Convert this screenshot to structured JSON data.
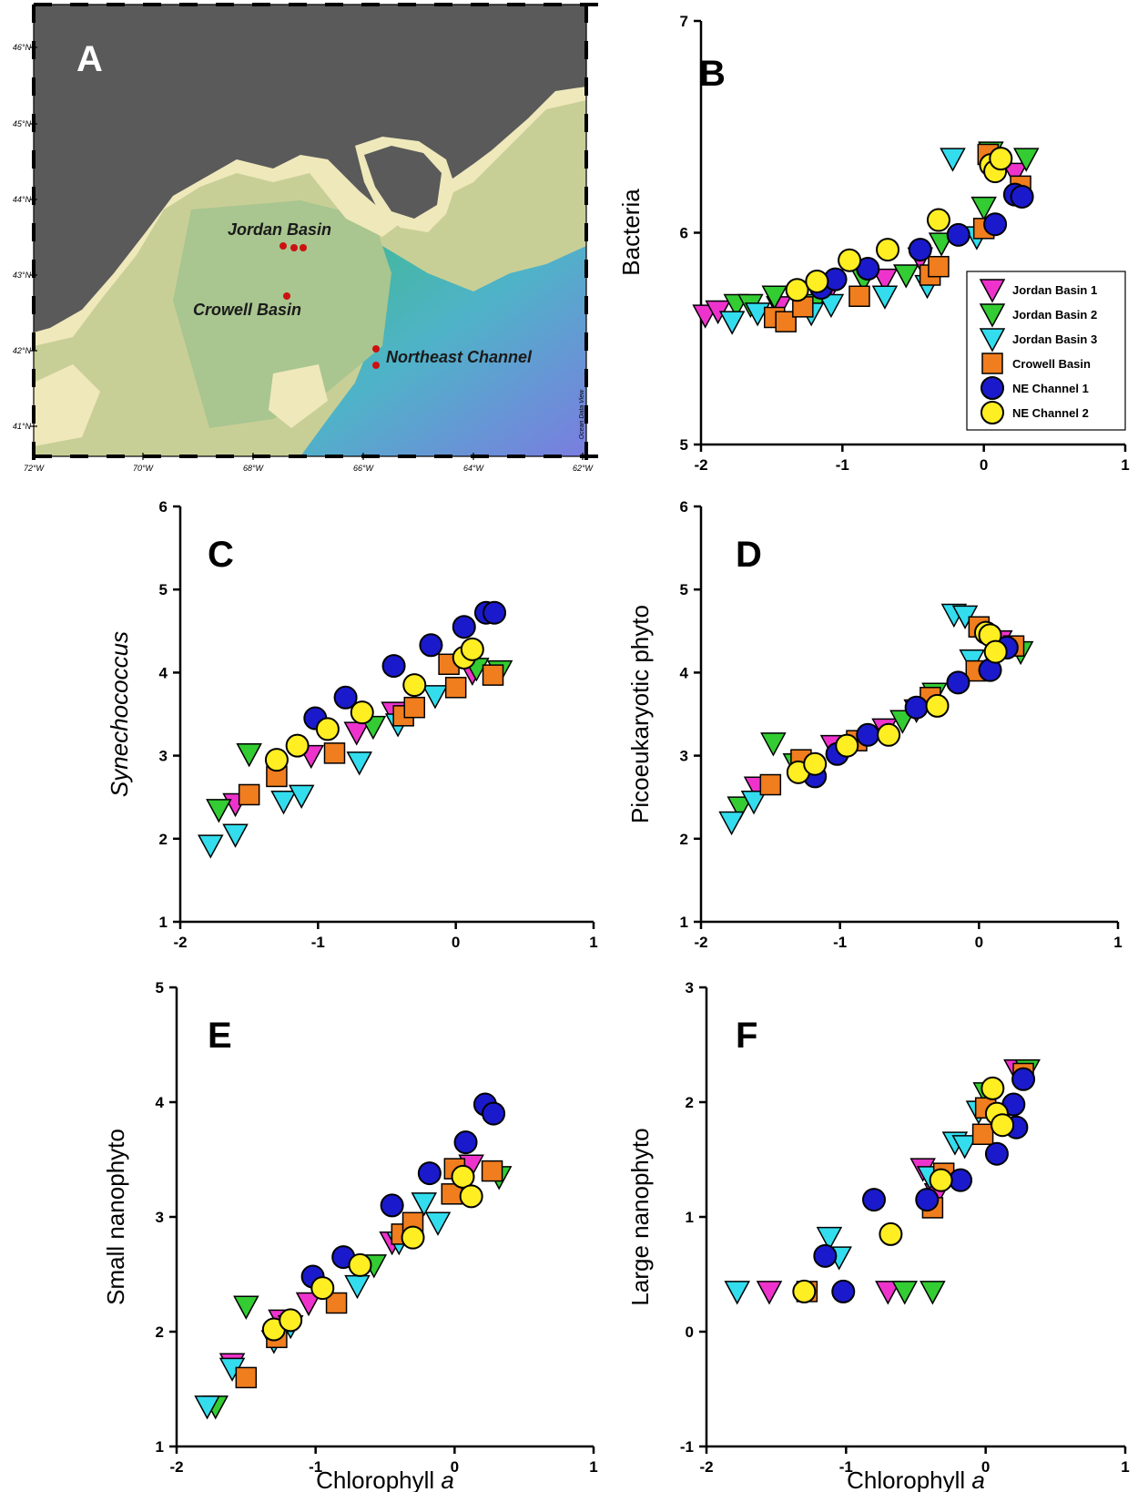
{
  "colors": {
    "Jordan Basin 1": "#ee33cc",
    "Jordan Basin 2": "#33cc33",
    "Jordan Basin 3": "#33ddee",
    "Crowell Basin": "#f07d1e",
    "NE Channel 1": "#1a1acc",
    "NE Channel 2": "#ffee22"
  },
  "shapes": {
    "Jordan Basin 1": "triangle-down",
    "Jordan Basin 2": "triangle-down",
    "Jordan Basin 3": "triangle-down",
    "Crowell Basin": "square",
    "NE Channel 1": "circle",
    "NE Channel 2": "circle"
  },
  "map": {
    "letter": "A",
    "longitude_ticks": [
      "72°W",
      "70°W",
      "68°W",
      "66°W",
      "64°W",
      "62°W"
    ],
    "latitude_ticks": [
      "46°N",
      "45°N",
      "44°N",
      "43°N",
      "42°N",
      "41°N"
    ],
    "site_labels": [
      "Jordan Basin",
      "Crowell Basin",
      "Northeast Channel"
    ],
    "credit": "Ocean Data View"
  },
  "legend": [
    "Jordan Basin 1",
    "Jordan Basin 2",
    "Jordan Basin 3",
    "Crowell Basin",
    "NE Channel 1",
    "NE Channel 2"
  ],
  "chart_data": [
    {
      "panel": "B",
      "type": "scatter",
      "ylabel": "Bacteria",
      "xlabel": "",
      "xlim": [
        -2,
        1
      ],
      "ylim": [
        5,
        7
      ],
      "xticks": [
        "-2",
        "-1",
        "0",
        "1"
      ],
      "yticks": [
        "5",
        "6",
        "7"
      ],
      "series": [
        {
          "name": "Jordan Basin 1",
          "x": [
            -1.97,
            -1.88,
            -1.45,
            -1.1,
            -0.7,
            -0.45,
            0.22
          ],
          "y": [
            5.61,
            5.63,
            5.65,
            5.72,
            5.78,
            5.88,
            6.28
          ]
        },
        {
          "name": "Jordan Basin 2",
          "x": [
            -1.75,
            -1.65,
            -1.48,
            -1.2,
            -0.85,
            -0.55,
            -0.3,
            0.0,
            0.05,
            0.3
          ],
          "y": [
            5.66,
            5.66,
            5.7,
            5.66,
            5.78,
            5.8,
            5.95,
            6.12,
            6.38,
            6.35
          ]
        },
        {
          "name": "Jordan Basin 3",
          "x": [
            -1.78,
            -1.6,
            -1.22,
            -1.08,
            -0.7,
            -0.4,
            -0.22,
            -0.05
          ],
          "y": [
            5.58,
            5.62,
            5.62,
            5.66,
            5.7,
            5.75,
            6.35,
            5.98
          ]
        },
        {
          "name": "Crowell Basin",
          "x": [
            -1.48,
            -1.4,
            -1.28,
            -0.88,
            -0.38,
            -0.32,
            0.0,
            0.03,
            0.26
          ],
          "y": [
            5.6,
            5.58,
            5.65,
            5.7,
            5.8,
            5.84,
            6.02,
            6.37,
            6.22
          ]
        },
        {
          "name": "NE Channel 1",
          "x": [
            -1.15,
            -1.05,
            -0.82,
            -0.45,
            -0.18,
            0.08,
            0.22,
            0.27
          ],
          "y": [
            5.74,
            5.78,
            5.83,
            5.92,
            5.99,
            6.04,
            6.18,
            6.17
          ]
        },
        {
          "name": "NE Channel 2",
          "x": [
            -1.32,
            -1.18,
            -0.95,
            -0.68,
            -0.32,
            0.05,
            0.08,
            0.12
          ],
          "y": [
            5.73,
            5.77,
            5.87,
            5.92,
            6.06,
            6.32,
            6.29,
            6.35
          ]
        }
      ]
    },
    {
      "panel": "C",
      "type": "scatter",
      "ylabel": "Synechococcus",
      "xlabel": "",
      "xlim": [
        -2,
        1
      ],
      "ylim": [
        1,
        6
      ],
      "xticks": [
        "-2",
        "-1",
        "0",
        "1"
      ],
      "yticks": [
        "1",
        "2",
        "3",
        "4",
        "5",
        "6"
      ],
      "series": [
        {
          "name": "Jordan Basin 1",
          "x": [
            -1.6,
            -1.05,
            -0.72,
            -0.45,
            0.12
          ],
          "y": [
            2.42,
            3.0,
            3.28,
            3.52,
            4.0
          ]
        },
        {
          "name": "Jordan Basin 2",
          "x": [
            -1.72,
            -1.5,
            -0.6,
            0.15,
            0.32
          ],
          "y": [
            2.35,
            3.02,
            3.35,
            4.05,
            4.02
          ]
        },
        {
          "name": "Jordan Basin 3",
          "x": [
            -1.78,
            -1.6,
            -1.25,
            -1.12,
            -0.7,
            -0.42,
            -0.15
          ],
          "y": [
            1.92,
            2.05,
            2.45,
            2.52,
            2.92,
            3.38,
            3.72
          ]
        },
        {
          "name": "Crowell Basin",
          "x": [
            -1.5,
            -1.3,
            -0.88,
            -0.38,
            -0.3,
            -0.05,
            0.0,
            0.27
          ],
          "y": [
            2.53,
            2.75,
            3.03,
            3.48,
            3.58,
            4.1,
            3.82,
            3.97
          ]
        },
        {
          "name": "NE Channel 1",
          "x": [
            -1.02,
            -0.8,
            -0.45,
            -0.18,
            0.06,
            0.22,
            0.28
          ],
          "y": [
            3.45,
            3.7,
            4.08,
            4.33,
            4.55,
            4.72,
            4.72
          ]
        },
        {
          "name": "NE Channel 2",
          "x": [
            -1.3,
            -1.15,
            -0.93,
            -0.68,
            -0.3,
            0.06,
            0.12
          ],
          "y": [
            2.95,
            3.12,
            3.32,
            3.52,
            3.85,
            4.18,
            4.28
          ]
        }
      ]
    },
    {
      "panel": "D",
      "type": "scatter",
      "ylabel": "Picoeukaryotic phyto",
      "xlabel": "",
      "xlim": [
        -2,
        1
      ],
      "ylim": [
        1,
        6
      ],
      "xticks": [
        "-2",
        "-1",
        "0",
        "1"
      ],
      "yticks": [
        "1",
        "2",
        "3",
        "4",
        "5",
        "6"
      ],
      "series": [
        {
          "name": "Jordan Basin 1",
          "x": [
            -1.6,
            -1.05,
            -0.68,
            -0.45,
            0.15
          ],
          "y": [
            2.62,
            3.12,
            3.32,
            3.55,
            4.38
          ]
        },
        {
          "name": "Jordan Basin 2",
          "x": [
            -1.72,
            -1.48,
            -1.32,
            -0.55,
            -0.32,
            0.3
          ],
          "y": [
            2.38,
            3.15,
            2.9,
            3.42,
            3.75,
            4.25
          ]
        },
        {
          "name": "Jordan Basin 3",
          "x": [
            -1.78,
            -1.62,
            -1.22,
            -0.18,
            -0.05,
            -0.1
          ],
          "y": [
            2.2,
            2.45,
            2.88,
            4.7,
            4.15,
            4.68
          ]
        },
        {
          "name": "Crowell Basin",
          "x": [
            -1.5,
            -1.28,
            -0.88,
            -0.35,
            -0.02,
            0.0,
            0.25
          ],
          "y": [
            2.65,
            2.95,
            3.18,
            3.7,
            4.02,
            4.55,
            4.32
          ]
        },
        {
          "name": "NE Channel 1",
          "x": [
            -1.18,
            -1.02,
            -0.8,
            -0.45,
            -0.15,
            0.08,
            0.2
          ],
          "y": [
            2.75,
            3.02,
            3.25,
            3.58,
            3.88,
            4.03,
            4.3
          ]
        },
        {
          "name": "NE Channel 2",
          "x": [
            -1.3,
            -1.18,
            -0.95,
            -0.65,
            -0.3,
            0.05,
            0.08,
            0.12
          ],
          "y": [
            2.8,
            2.9,
            3.12,
            3.25,
            3.6,
            4.48,
            4.45,
            4.25
          ]
        }
      ]
    },
    {
      "panel": "E",
      "type": "scatter",
      "ylabel": "Small nanophyto",
      "xlabel": "Chlorophyll a",
      "xlim": [
        -2,
        1
      ],
      "ylim": [
        1,
        5
      ],
      "xticks": [
        "-2",
        "-1",
        "0",
        "1"
      ],
      "yticks": [
        "1",
        "2",
        "3",
        "4",
        "5"
      ],
      "series": [
        {
          "name": "Jordan Basin 1",
          "x": [
            -1.6,
            -1.25,
            -1.05,
            -0.45,
            0.12
          ],
          "y": [
            1.72,
            2.1,
            2.25,
            2.78,
            3.45
          ]
        },
        {
          "name": "Jordan Basin 2",
          "x": [
            -1.72,
            -1.5,
            -0.58,
            0.32
          ],
          "y": [
            1.35,
            2.22,
            2.58,
            3.35
          ]
        },
        {
          "name": "Jordan Basin 3",
          "x": [
            -1.78,
            -1.6,
            -1.3,
            -1.18,
            -0.7,
            -0.4,
            -0.22,
            -0.12
          ],
          "y": [
            1.35,
            1.68,
            1.92,
            2.05,
            2.4,
            2.78,
            3.12,
            2.95
          ]
        },
        {
          "name": "Crowell Basin",
          "x": [
            -1.5,
            -1.28,
            -0.85,
            -0.38,
            -0.3,
            -0.02,
            0.0,
            0.27
          ],
          "y": [
            1.6,
            1.95,
            2.25,
            2.85,
            2.95,
            3.2,
            3.42,
            3.4
          ]
        },
        {
          "name": "NE Channel 1",
          "x": [
            -1.02,
            -0.8,
            -0.45,
            -0.18,
            0.08,
            0.22,
            0.28
          ],
          "y": [
            2.48,
            2.65,
            3.1,
            3.38,
            3.65,
            3.98,
            3.9
          ]
        },
        {
          "name": "NE Channel 2",
          "x": [
            -1.3,
            -1.18,
            -0.95,
            -0.68,
            -0.3,
            0.06,
            0.12
          ],
          "y": [
            2.02,
            2.1,
            2.38,
            2.58,
            2.82,
            3.35,
            3.18
          ]
        }
      ]
    },
    {
      "panel": "F",
      "type": "scatter",
      "ylabel": "Large nanophyto",
      "xlabel": "Chlorophyll a",
      "xlim": [
        -2,
        1
      ],
      "ylim": [
        -1,
        3
      ],
      "xticks": [
        "-2",
        "-1",
        "0",
        "1"
      ],
      "yticks": [
        "-1",
        "0",
        "1",
        "2",
        "3"
      ],
      "series": [
        {
          "name": "Jordan Basin 1",
          "x": [
            -1.55,
            -0.7,
            -0.45,
            -0.35,
            0.22
          ],
          "y": [
            0.35,
            0.35,
            1.42,
            1.2,
            2.28
          ]
        },
        {
          "name": "Jordan Basin 2",
          "x": [
            -0.58,
            -0.38,
            0.0,
            0.3
          ],
          "y": [
            0.35,
            0.35,
            2.08,
            2.28
          ]
        },
        {
          "name": "Jordan Basin 3",
          "x": [
            -1.78,
            -1.12,
            -1.05,
            -0.4,
            -0.22,
            -0.15,
            -0.05
          ],
          "y": [
            0.35,
            0.82,
            0.65,
            1.35,
            1.65,
            1.62,
            1.92
          ]
        },
        {
          "name": "Crowell Basin",
          "x": [
            -1.28,
            -0.38,
            -0.3,
            -0.02,
            0.0,
            0.27
          ],
          "y": [
            0.35,
            1.08,
            1.38,
            1.72,
            1.95,
            2.25
          ]
        },
        {
          "name": "NE Channel 1",
          "x": [
            -1.15,
            -1.02,
            -0.8,
            -0.42,
            -0.18,
            0.08,
            0.2,
            0.22,
            0.27
          ],
          "y": [
            0.66,
            0.35,
            1.15,
            1.15,
            1.32,
            1.55,
            1.98,
            1.78,
            2.2
          ]
        },
        {
          "name": "NE Channel 2",
          "x": [
            -1.3,
            -0.68,
            -0.32,
            0.05,
            0.08,
            0.12
          ],
          "y": [
            0.35,
            0.85,
            1.32,
            2.12,
            1.9,
            1.8
          ]
        }
      ]
    }
  ]
}
